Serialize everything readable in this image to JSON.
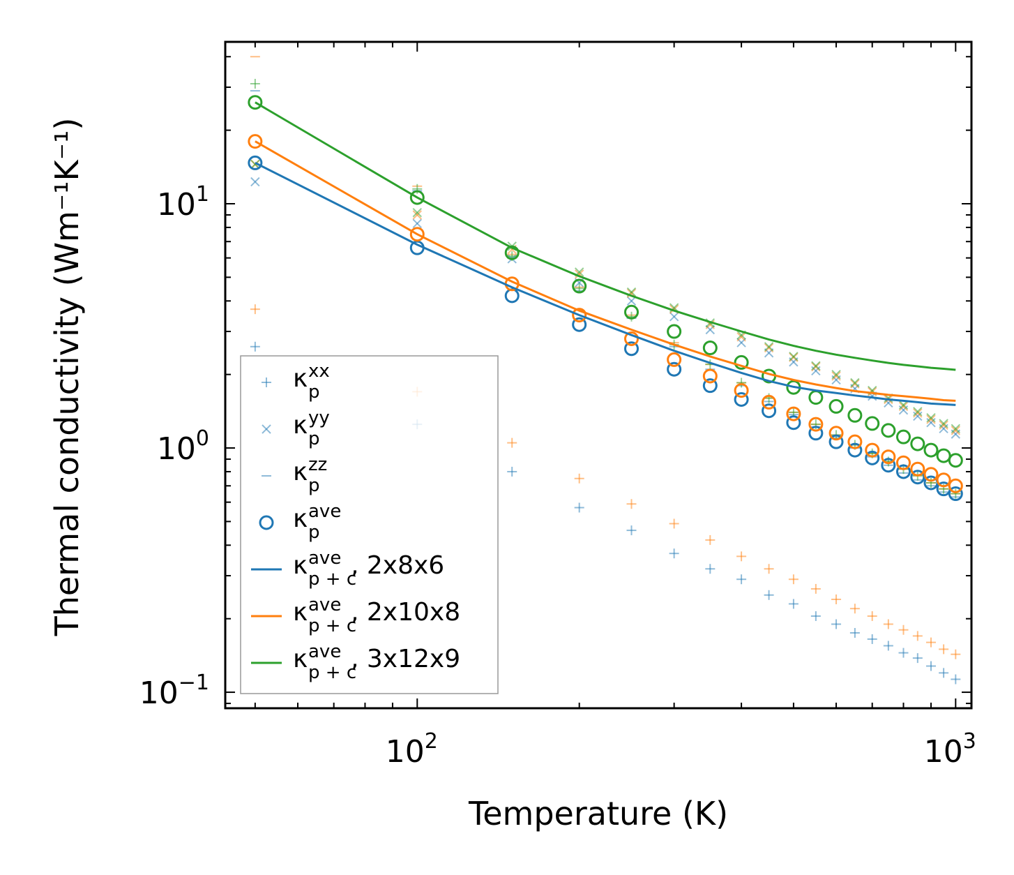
{
  "chart_data": {
    "type": "scatter",
    "xscale": "log",
    "yscale": "log",
    "xlim": [
      44,
      1070
    ],
    "ylim": [
      0.086,
      46
    ],
    "xlabel": "Temperature (K)",
    "ylabel": "Thermal conductivity (Wm⁻¹K⁻¹)",
    "x_ticks": [
      {
        "value": 100,
        "base": "10",
        "exp": "2"
      },
      {
        "value": 1000,
        "base": "10",
        "exp": "3"
      }
    ],
    "y_ticks": [
      {
        "value": 0.1,
        "base": "10",
        "exp": "−1"
      },
      {
        "value": 1,
        "base": "10",
        "exp": "0"
      },
      {
        "value": 10,
        "base": "10",
        "exp": "1"
      }
    ],
    "temperatures": [
      50,
      100,
      150,
      200,
      250,
      300,
      350,
      400,
      450,
      500,
      550,
      600,
      650,
      700,
      750,
      800,
      850,
      900,
      950,
      1000
    ],
    "series": [
      {
        "name": "κ_p^xx (2x8x6)",
        "color": "#1f77b4",
        "marker": "plus",
        "alpha": 0.5,
        "values": [
          2.6,
          1.25,
          0.8,
          0.57,
          0.46,
          0.37,
          0.32,
          0.29,
          0.25,
          0.23,
          0.205,
          0.19,
          0.175,
          0.165,
          0.155,
          0.145,
          0.138,
          0.128,
          0.12,
          0.113
        ]
      },
      {
        "name": "κ_p^xx (2x10x8)",
        "color": "#ff7f0e",
        "marker": "plus",
        "alpha": 0.5,
        "values": [
          3.7,
          1.7,
          1.05,
          0.75,
          0.59,
          0.49,
          0.42,
          0.36,
          0.32,
          0.29,
          0.265,
          0.24,
          0.22,
          0.205,
          0.19,
          0.18,
          0.17,
          0.16,
          0.15,
          0.143
        ]
      },
      {
        "name": "κ_p^yy (2x8x6)",
        "color": "#1f77b4",
        "marker": "x",
        "alpha": 0.5,
        "values": [
          12.3,
          8.3,
          5.95,
          4.75,
          4.0,
          3.45,
          3.05,
          2.7,
          2.45,
          2.25,
          2.07,
          1.9,
          1.75,
          1.63,
          1.53,
          1.43,
          1.35,
          1.27,
          1.2,
          1.14
        ]
      },
      {
        "name": "κ_p^yy (2x10x8)",
        "color": "#ff7f0e",
        "marker": "x",
        "alpha": 0.5,
        "values": [
          14.5,
          9.0,
          6.5,
          5.15,
          4.3,
          3.7,
          3.2,
          2.85,
          2.57,
          2.35,
          2.15,
          1.97,
          1.83,
          1.7,
          1.58,
          1.48,
          1.39,
          1.31,
          1.24,
          1.18
        ]
      },
      {
        "name": "κ_p^yy (3x12x9)",
        "color": "#2ca02c",
        "marker": "x",
        "alpha": 0.5,
        "values": [
          14.5,
          9.2,
          6.7,
          5.25,
          4.35,
          3.75,
          3.25,
          2.9,
          2.6,
          2.37,
          2.17,
          2.0,
          1.85,
          1.72,
          1.6,
          1.5,
          1.41,
          1.33,
          1.26,
          1.2
        ]
      },
      {
        "name": "κ_p^zz (2x8x6)",
        "color": "#1f77b4",
        "marker": "hline",
        "alpha": 0.5,
        "values": [
          29.0,
          11.3,
          6.0,
          4.4,
          3.4,
          2.6,
          2.1,
          1.8,
          1.55,
          1.37,
          1.22,
          1.1,
          1.0,
          0.92,
          0.85,
          0.79,
          0.74,
          0.7,
          0.66,
          0.63
        ]
      },
      {
        "name": "κ_p^zz (2x10x8)",
        "color": "#ff7f0e",
        "marker": "hline",
        "alpha": 0.5,
        "values": [
          40.0,
          11.8,
          6.2,
          4.55,
          3.5,
          2.7,
          2.2,
          1.85,
          1.6,
          1.4,
          1.25,
          1.13,
          1.03,
          0.95,
          0.88,
          0.82,
          0.77,
          0.72,
          0.68,
          0.65
        ]
      },
      {
        "name": "κ_p^zz (3x12x9)",
        "color": "#2ca02c",
        "marker": "plus",
        "alpha": 0.5,
        "values": [
          31.0,
          11.5,
          6.1,
          4.5,
          3.45,
          2.65,
          2.2,
          1.85,
          1.6,
          1.4,
          1.25,
          1.13,
          1.03,
          0.95,
          0.88,
          0.82,
          0.77,
          0.72,
          0.68,
          0.65
        ]
      },
      {
        "name": "κ_p^ave (2x8x6)",
        "color": "#1f77b4",
        "marker": "circle",
        "alpha": 1,
        "values": [
          14.7,
          6.6,
          4.2,
          3.2,
          2.55,
          2.1,
          1.8,
          1.58,
          1.42,
          1.27,
          1.15,
          1.06,
          0.98,
          0.91,
          0.85,
          0.8,
          0.76,
          0.72,
          0.68,
          0.65
        ]
      },
      {
        "name": "κ_p^ave (2x10x8)",
        "color": "#ff7f0e",
        "marker": "circle",
        "alpha": 1,
        "values": [
          18.0,
          7.5,
          4.7,
          3.5,
          2.8,
          2.3,
          1.97,
          1.72,
          1.54,
          1.38,
          1.25,
          1.15,
          1.06,
          0.98,
          0.92,
          0.87,
          0.82,
          0.78,
          0.74,
          0.7
        ]
      },
      {
        "name": "κ_p^ave (3x12x9)",
        "color": "#2ca02c",
        "marker": "circle",
        "alpha": 1,
        "values": [
          26.0,
          10.6,
          6.3,
          4.6,
          3.6,
          3.0,
          2.57,
          2.24,
          1.97,
          1.77,
          1.61,
          1.48,
          1.36,
          1.26,
          1.18,
          1.11,
          1.04,
          0.98,
          0.93,
          0.89
        ]
      }
    ],
    "lines": [
      {
        "name": "κ_p+c^ave, 2x8x6",
        "color": "#1f77b4",
        "values": [
          14.7,
          6.8,
          4.55,
          3.5,
          2.9,
          2.5,
          2.23,
          2.03,
          1.88,
          1.78,
          1.72,
          1.68,
          1.64,
          1.61,
          1.58,
          1.56,
          1.54,
          1.52,
          1.51,
          1.5
        ]
      },
      {
        "name": "κ_p+c^ave, 2x10x8",
        "color": "#ff7f0e",
        "values": [
          18.0,
          7.5,
          4.8,
          3.65,
          3.05,
          2.65,
          2.37,
          2.17,
          2.01,
          1.9,
          1.82,
          1.76,
          1.71,
          1.68,
          1.65,
          1.63,
          1.61,
          1.59,
          1.57,
          1.56
        ]
      },
      {
        "name": "κ_p+c^ave, 3x12x9",
        "color": "#2ca02c",
        "values": [
          26.0,
          10.6,
          6.6,
          5.05,
          4.2,
          3.65,
          3.28,
          3.0,
          2.78,
          2.62,
          2.5,
          2.41,
          2.34,
          2.28,
          2.23,
          2.19,
          2.16,
          2.13,
          2.11,
          2.09
        ]
      }
    ],
    "legend": {
      "position": "lower-left",
      "entries": [
        {
          "marker": "plus",
          "color": "#1f77b4",
          "sym": "κ",
          "sub": "p",
          "sup": "xx",
          "suffix": ""
        },
        {
          "marker": "x",
          "color": "#1f77b4",
          "sym": "κ",
          "sub": "p",
          "sup": "yy",
          "suffix": ""
        },
        {
          "marker": "hline",
          "color": "#1f77b4",
          "sym": "κ",
          "sub": "p",
          "sup": "zz",
          "suffix": ""
        },
        {
          "marker": "circle",
          "color": "#1f77b4",
          "sym": "κ",
          "sub": "p",
          "sup": "ave",
          "suffix": ""
        },
        {
          "marker": "line",
          "color": "#1f77b4",
          "sym": "κ",
          "sub": "p + c",
          "sup": "ave",
          "suffix": ", 2x8x6"
        },
        {
          "marker": "line",
          "color": "#ff7f0e",
          "sym": "κ",
          "sub": "p + c",
          "sup": "ave",
          "suffix": ", 2x10x8"
        },
        {
          "marker": "line",
          "color": "#2ca02c",
          "sym": "κ",
          "sub": "p + c",
          "sup": "ave",
          "suffix": ", 3x12x9"
        }
      ]
    }
  }
}
